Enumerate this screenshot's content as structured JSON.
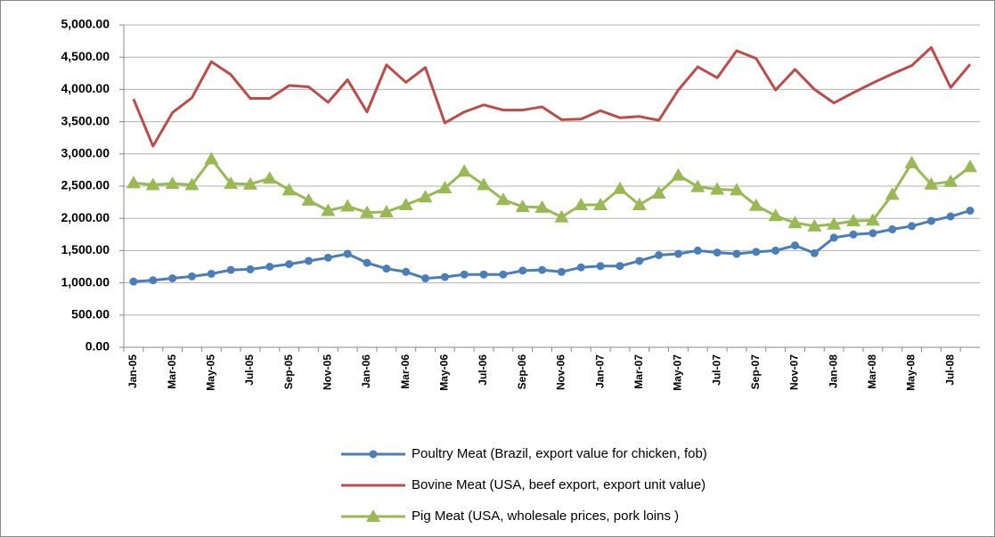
{
  "chart_data": {
    "type": "line",
    "categories": [
      "Jan-05",
      null,
      "Mar-05",
      null,
      "May-05",
      null,
      "Jul-05",
      null,
      "Sep-05",
      null,
      "Nov-05",
      null,
      "Jan-06",
      null,
      "Mar-06",
      null,
      "May-06",
      null,
      "Jul-06",
      null,
      "Sep-06",
      null,
      "Nov-06",
      null,
      "Jan-07",
      null,
      "Mar-07",
      null,
      "May-07",
      null,
      "Jul-07",
      null,
      "Sep-07",
      null,
      "Nov-07",
      null,
      "Jan-08",
      null,
      "Mar-08",
      null,
      "May-08",
      null,
      "Jul-08",
      null
    ],
    "series": [
      {
        "name": "Poultry Meat (Brazil, export value for chicken, fob)",
        "color": "#4a7ebb",
        "marker": "circle",
        "values": [
          1020,
          1040,
          1070,
          1100,
          1140,
          1200,
          1210,
          1250,
          1290,
          1340,
          1390,
          1450,
          1310,
          1220,
          1170,
          1070,
          1090,
          1130,
          1130,
          1130,
          1190,
          1200,
          1170,
          1240,
          1260,
          1260,
          1340,
          1430,
          1450,
          1500,
          1470,
          1450,
          1480,
          1500,
          1580,
          1460,
          1700,
          1750,
          1770,
          1830,
          1880,
          1960,
          2030,
          2120
        ]
      },
      {
        "name": "Bovine Meat (USA, beef export, export unit value)",
        "color": "#be4b48",
        "marker": "none",
        "values": [
          3850,
          3120,
          3640,
          3870,
          4430,
          4230,
          3860,
          3860,
          4060,
          4040,
          3800,
          4150,
          3650,
          4380,
          4110,
          4340,
          3480,
          3650,
          3760,
          3680,
          3680,
          3730,
          3530,
          3540,
          3670,
          3560,
          3580,
          3520,
          3990,
          4350,
          4180,
          4600,
          4480,
          3990,
          4310,
          4000,
          3790,
          3950,
          4100,
          4240,
          4370,
          4650,
          4030,
          4390
        ]
      },
      {
        "name": "Pig Meat (USA, wholesale prices, pork loins )",
        "color": "#98b954",
        "marker": "triangle",
        "values": [
          2550,
          2520,
          2540,
          2520,
          2920,
          2540,
          2530,
          2620,
          2440,
          2280,
          2120,
          2190,
          2090,
          2100,
          2210,
          2330,
          2470,
          2730,
          2520,
          2290,
          2180,
          2170,
          2020,
          2210,
          2210,
          2460,
          2210,
          2390,
          2670,
          2490,
          2450,
          2440,
          2200,
          2040,
          1930,
          1880,
          1910,
          1960,
          1970,
          2370,
          2860,
          2530,
          2570,
          2800
        ]
      }
    ],
    "ylim": [
      0,
      5000
    ],
    "yticks": [
      {
        "value": 0,
        "label": "0.00"
      },
      {
        "value": 500,
        "label": "500.00"
      },
      {
        "value": 1000,
        "label": "1,000.00"
      },
      {
        "value": 1500,
        "label": "1,500.00"
      },
      {
        "value": 2000,
        "label": "2,000.00"
      },
      {
        "value": 2500,
        "label": "2,500.00"
      },
      {
        "value": 3000,
        "label": "3,000.00"
      },
      {
        "value": 3500,
        "label": "3,500.00"
      },
      {
        "value": 4000,
        "label": "4,000.00"
      },
      {
        "value": 4500,
        "label": "4,500.00"
      },
      {
        "value": 5000,
        "label": "5,000.00"
      }
    ],
    "grid": true,
    "legend": "bottom"
  }
}
